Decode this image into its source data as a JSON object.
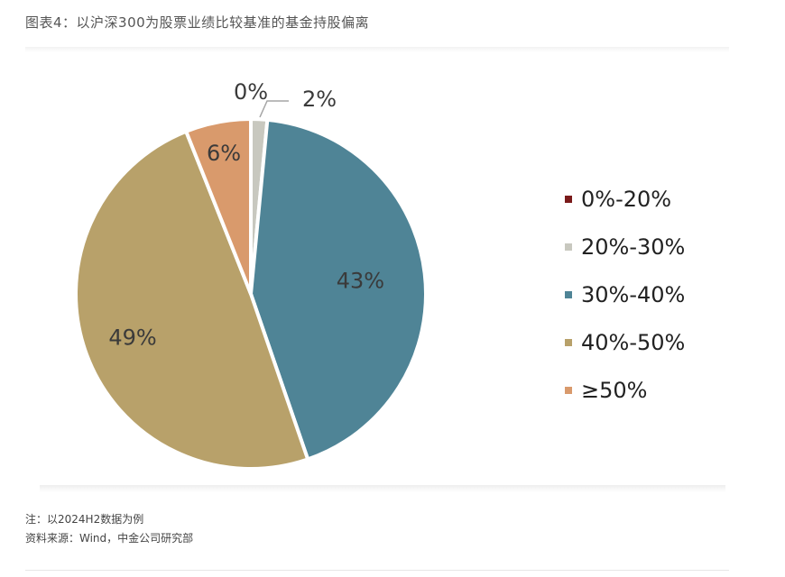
{
  "page": {
    "title": "图表4：以沪深300为股票业绩比较基准的基金持股偏离",
    "note": "注：以2024H2数据为例",
    "source": "资料来源：Wind，中金公司研究部"
  },
  "chart_data": {
    "type": "pie",
    "title": "",
    "categories": [
      "0%-20%",
      "20%-30%",
      "30%-40%",
      "40%-50%",
      "≥50%"
    ],
    "values": [
      0,
      1.5,
      43,
      49,
      6
    ],
    "data_labels": [
      "0%",
      "2%",
      "43%",
      "49%",
      "6%"
    ],
    "colors": [
      "#7a1a1a",
      "#c8c8bf",
      "#4f8496",
      "#b8a16a",
      "#d99a6c"
    ],
    "legend_position": "right"
  }
}
